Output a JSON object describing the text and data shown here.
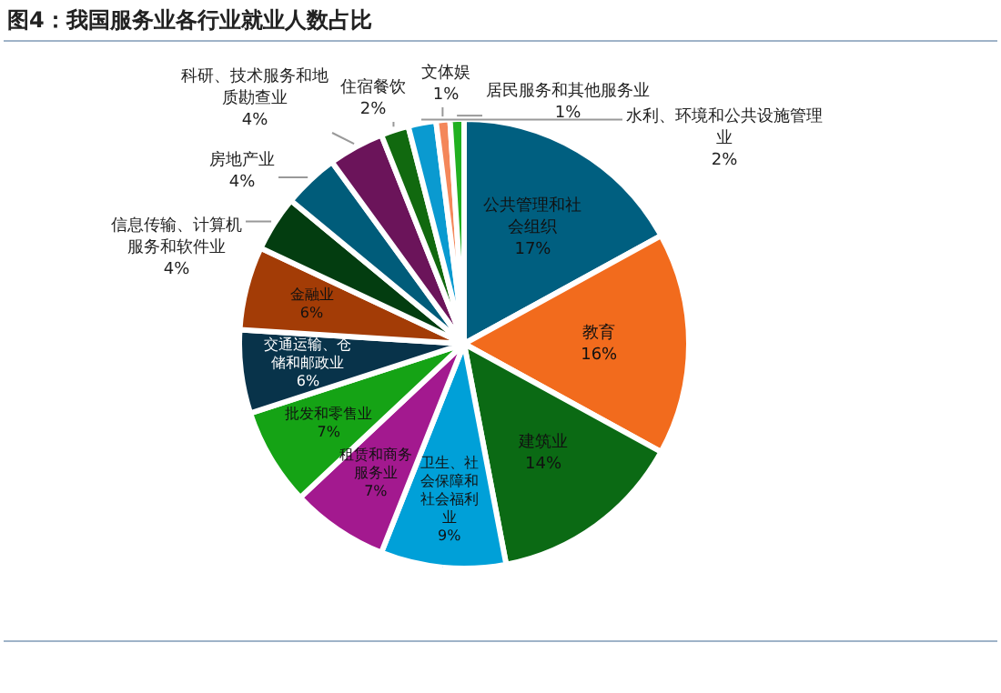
{
  "chart_data": {
    "type": "pie",
    "title": "图4：我国服务业各行业就业人数占比",
    "categories": [
      "公共管理和社会组织",
      "教育",
      "建筑业",
      "卫生、社会保障和社会福利业",
      "租赁和商务服务业",
      "批发和零售业",
      "交通运输、仓储和邮政业",
      "金融业",
      "信息传输、计算机服务和软件业",
      "房地产业",
      "科研、技术服务和地质勘查业",
      "住宿餐饮",
      "水利、环境和公共设施管理业",
      "文体娱",
      "居民服务和其他服务业"
    ],
    "values": [
      17,
      16,
      14,
      9,
      7,
      7,
      6,
      6,
      4,
      4,
      4,
      2,
      2,
      1,
      1
    ],
    "value_labels": [
      "17%",
      "16%",
      "14%",
      "9%",
      "7%",
      "7%",
      "6%",
      "6%",
      "4%",
      "4%",
      "4%",
      "2%",
      "2%",
      "1%",
      "1%"
    ],
    "colors": [
      "#005f80",
      "#f26b1d",
      "#0b6a14",
      "#00a0d8",
      "#a3198f",
      "#15a315",
      "#08334a",
      "#a33c06",
      "#033d10",
      "#005c7a",
      "#6b145a",
      "#11690f",
      "#0a9ad0",
      "#f4875a",
      "#20b020"
    ],
    "legend": false
  }
}
